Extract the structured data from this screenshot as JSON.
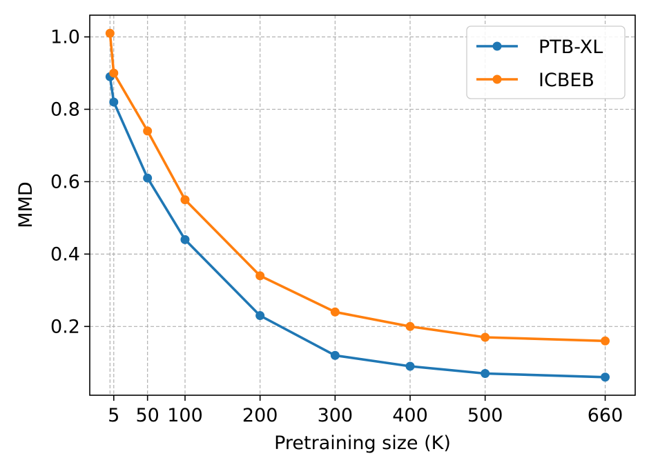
{
  "chart_data": {
    "type": "line",
    "title": "",
    "xlabel": "Pretraining size (K)",
    "ylabel": "MMD",
    "xlim": [
      -27,
      700
    ],
    "ylim": [
      0.01,
      1.06
    ],
    "grid": true,
    "legend_position": "top-right",
    "x_ticks": [
      5,
      50,
      100,
      200,
      300,
      400,
      500,
      660
    ],
    "x_tick_labels": [
      "5",
      "50",
      "100",
      "200",
      "300",
      "400",
      "500",
      "660"
    ],
    "x_extra_gridlines": [
      0
    ],
    "y_ticks": [
      0.2,
      0.4,
      0.6,
      0.8,
      1.0
    ],
    "y_tick_labels": [
      "0.2",
      "0.4",
      "0.6",
      "0.8",
      "1.0"
    ],
    "series": [
      {
        "name": "PTB-XL",
        "color": "#1f77b4",
        "x": [
          0,
          5,
          50,
          100,
          200,
          300,
          400,
          500,
          660
        ],
        "y": [
          0.89,
          0.82,
          0.61,
          0.44,
          0.23,
          0.12,
          0.09,
          0.07,
          0.06
        ]
      },
      {
        "name": "ICBEB",
        "color": "#ff7f0e",
        "x": [
          0,
          5,
          50,
          100,
          200,
          300,
          400,
          500,
          660
        ],
        "y": [
          1.01,
          0.9,
          0.74,
          0.55,
          0.34,
          0.24,
          0.2,
          0.17,
          0.16
        ]
      }
    ]
  }
}
